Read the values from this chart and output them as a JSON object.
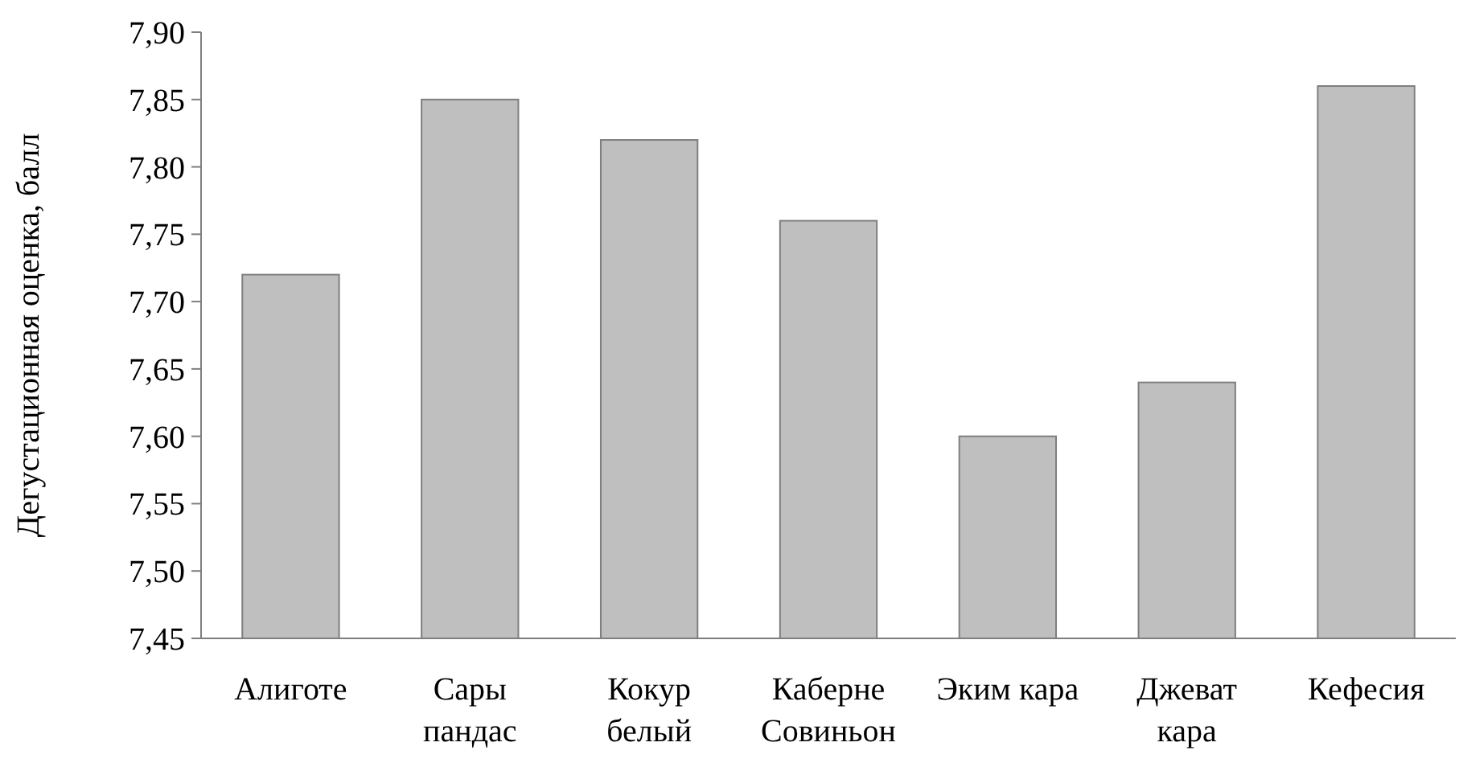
{
  "chart_data": {
    "type": "bar",
    "ylabel": "Дегустационная оценка, балл",
    "categories": [
      "Алиготе",
      "Сары пандас",
      "Кокур белый",
      "Каберне Совиньон",
      "Эким кара",
      "Джеват кара",
      "Кефесия"
    ],
    "values": [
      7.72,
      7.85,
      7.82,
      7.76,
      7.6,
      7.64,
      7.86
    ],
    "color": "#bfbfbf",
    "ylim": [
      7.45,
      7.9
    ],
    "yticks": [
      {
        "value": 7.45,
        "label": "7,45"
      },
      {
        "value": 7.5,
        "label": "7,50"
      },
      {
        "value": 7.55,
        "label": "7,55"
      },
      {
        "value": 7.6,
        "label": "7,60"
      },
      {
        "value": 7.65,
        "label": "7,65"
      },
      {
        "value": 7.7,
        "label": "7,70"
      },
      {
        "value": 7.75,
        "label": "7,75"
      },
      {
        "value": 7.8,
        "label": "7,80"
      },
      {
        "value": 7.85,
        "label": "7,85"
      },
      {
        "value": 7.9,
        "label": "7,90"
      }
    ],
    "grid": false
  }
}
